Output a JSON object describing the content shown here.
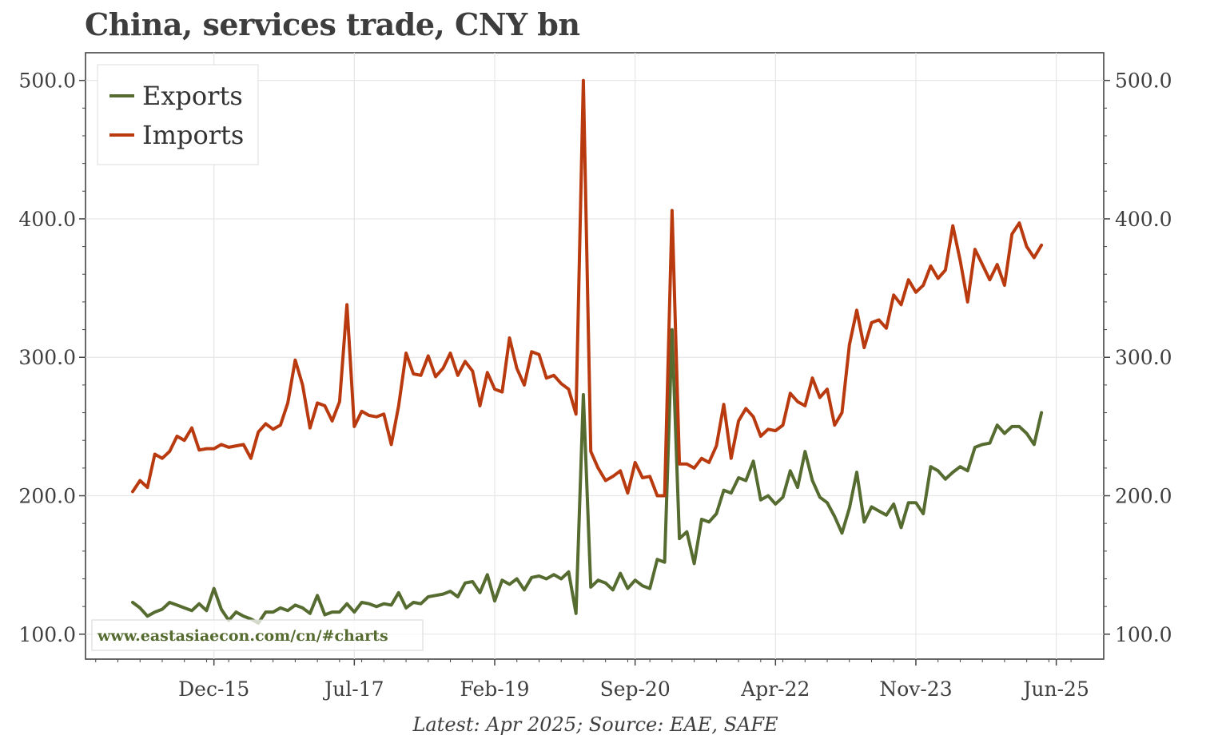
{
  "chart_data": {
    "type": "line",
    "title": "China, services trade, CNY bn",
    "x_start": "2015-01",
    "frequency": "monthly",
    "x_tick_labels": [
      "Dec-15",
      "Jul-17",
      "Feb-19",
      "Sep-20",
      "Apr-22",
      "Nov-23",
      "Jun-25"
    ],
    "y_tick_labels": [
      "100.0",
      "200.0",
      "300.0",
      "400.0",
      "500.0"
    ],
    "ylim": [
      82,
      520
    ],
    "grid": true,
    "legend_position": "top-left",
    "footnote": "Latest: Apr 2025; Source: EAE, SAFE",
    "watermark": "www.eastasiaecon.com/cn/#charts",
    "series": [
      {
        "name": "Exports",
        "color": "#556b2f",
        "values": [
          123,
          119,
          113,
          116,
          118,
          123,
          121,
          119,
          117,
          122,
          117,
          133,
          118,
          110,
          116,
          113,
          111,
          108,
          116,
          116,
          119,
          117,
          121,
          119,
          115,
          128,
          114,
          116,
          116,
          122,
          116,
          123,
          122,
          120,
          122,
          121,
          130,
          119,
          123,
          122,
          127,
          128,
          129,
          131,
          127,
          137,
          138,
          130,
          143,
          124,
          139,
          136,
          140,
          132,
          141,
          142,
          140,
          143,
          140,
          145,
          115,
          273,
          134,
          139,
          137,
          132,
          144,
          133,
          139,
          135,
          133,
          154,
          152,
          320,
          169,
          174,
          151,
          183,
          181,
          187,
          204,
          202,
          213,
          211,
          225,
          197,
          200,
          194,
          199,
          218,
          206,
          232,
          211,
          199,
          195,
          185,
          173,
          191,
          217,
          181,
          192,
          189,
          186,
          194,
          177,
          195,
          195,
          187,
          221,
          218,
          212,
          217,
          221,
          218,
          235,
          237,
          238,
          251,
          245,
          250,
          250,
          245,
          237,
          260
        ],
        "markers": [
          "Exports"
        ]
      },
      {
        "name": "Imports",
        "color": "#b93a0f",
        "values": [
          203,
          211,
          206,
          230,
          227,
          232,
          243,
          240,
          249,
          233,
          234,
          234,
          237,
          235,
          236,
          237,
          227,
          246,
          252,
          248,
          251,
          267,
          298,
          280,
          249,
          267,
          265,
          254,
          268,
          338,
          250,
          261,
          258,
          257,
          259,
          237,
          265,
          303,
          288,
          287,
          301,
          286,
          292,
          303,
          287,
          297,
          290,
          265,
          289,
          277,
          275,
          314,
          292,
          280,
          304,
          302,
          285,
          287,
          281,
          277,
          259,
          500,
          232,
          220,
          211,
          214,
          218,
          202,
          224,
          213,
          214,
          200,
          200,
          406,
          223,
          223,
          220,
          227,
          224,
          236,
          266,
          227,
          254,
          263,
          257,
          243,
          248,
          247,
          251,
          274,
          268,
          265,
          285,
          271,
          277,
          251,
          260,
          309,
          334,
          307,
          325,
          327,
          321,
          345,
          338,
          356,
          347,
          352,
          366,
          357,
          363,
          395,
          370,
          340,
          378,
          367,
          356,
          367,
          352,
          389,
          397,
          380,
          372,
          381
        ],
        "markers": [
          "Imports"
        ]
      }
    ]
  }
}
